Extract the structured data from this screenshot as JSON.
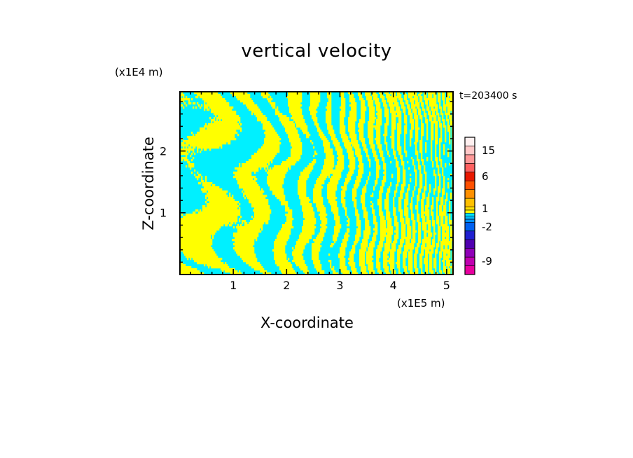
{
  "chart_data": {
    "type": "heatmap",
    "title": "vertical velocity",
    "xlabel": "X-coordinate",
    "ylabel": "Z-coordinate",
    "x_unit": "(x1E5 m)",
    "y_unit": "(x1E4 m)",
    "time_label": "t=203400 s",
    "xlim": [
      0,
      5.12
    ],
    "ylim": [
      0,
      2.96
    ],
    "x_ticks": [
      "1",
      "2",
      "3",
      "4",
      "5"
    ],
    "y_ticks": [
      "1",
      "2"
    ],
    "colorbar": {
      "tick_labels": [
        {
          "label": "15",
          "level": 15
        },
        {
          "label": "6",
          "level": 6
        },
        {
          "label": "1",
          "level": 1
        },
        {
          "label": "-2",
          "level": -2
        },
        {
          "label": "-9",
          "level": -9
        }
      ],
      "levels": [
        -12,
        -9,
        -6,
        -4,
        -3,
        -2,
        -1,
        -0.5,
        0,
        0.5,
        1,
        2,
        3,
        4,
        6,
        9,
        12,
        15,
        18
      ],
      "colors": [
        "#e800a0",
        "#c000b0",
        "#9000b8",
        "#5000b0",
        "#2020d0",
        "#0060f0",
        "#0090ff",
        "#00b8ff",
        "#00e8ff",
        "#ffff00",
        "#ffe000",
        "#ffc000",
        "#ff9000",
        "#ff5000",
        "#e81800",
        "#ff6060",
        "#ff9898",
        "#ffc8c8",
        "#fff0f0"
      ]
    },
    "field_colors": {
      "positive": "#ffff00",
      "negative": "#00f0ff"
    }
  }
}
